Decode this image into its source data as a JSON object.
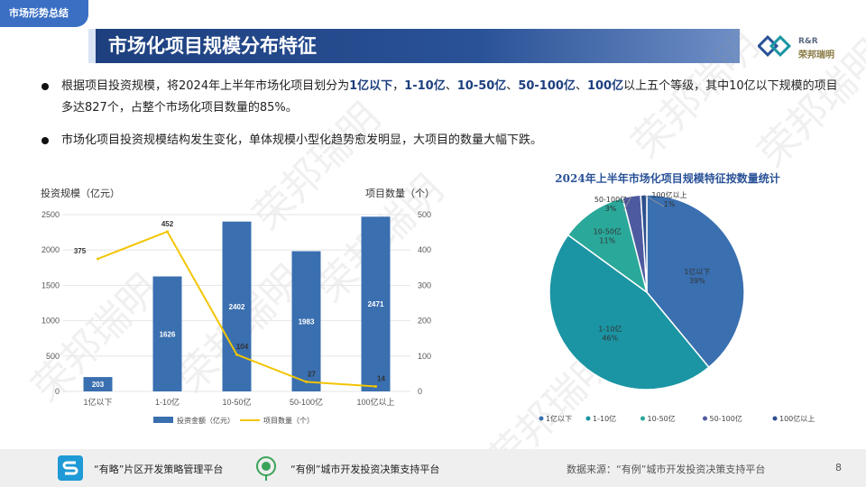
{
  "section_tag": "市场形势总结",
  "title": "市场化项目规模分布特征",
  "logo": {
    "en": "R&R",
    "cn": "荣邦瑞明"
  },
  "bullets": [
    {
      "parts": [
        {
          "t": "根据项目投资规模，将2024年上半年市场化项目划分为",
          "h": false
        },
        {
          "t": "1亿以下",
          "h": true
        },
        {
          "t": "，",
          "h": false
        },
        {
          "t": "1-10亿",
          "h": true
        },
        {
          "t": "、",
          "h": false
        },
        {
          "t": "10-50亿",
          "h": true
        },
        {
          "t": "、",
          "h": false
        },
        {
          "t": "50-100亿",
          "h": true
        },
        {
          "t": "、",
          "h": false
        },
        {
          "t": "100亿",
          "h": true
        },
        {
          "t": "以上五个等级，其中10亿以下规模的项目多达827个，占整个市场化项目数量的85%。",
          "h": false
        }
      ]
    },
    {
      "parts": [
        {
          "t": "市场化项目投资规模结构发生变化，单体规模小型化趋势愈发明显，大项目的数量大幅下跌。",
          "h": false
        }
      ]
    }
  ],
  "watermark": "荣邦瑞明",
  "chart_data": [
    {
      "type": "bar",
      "categories": [
        "1亿以下",
        "1-10亿",
        "10-50亿",
        "50-100亿",
        "100亿以上"
      ],
      "series": [
        {
          "name": "投资金额（亿元）",
          "kind": "bar",
          "axis": "left",
          "color": "#3a6fb0",
          "values": [
            203,
            1626,
            2402,
            1983,
            2471
          ]
        },
        {
          "name": "项目数量（个）",
          "kind": "line",
          "axis": "right",
          "color": "#f2c500",
          "values": [
            375,
            452,
            104,
            27,
            14
          ]
        }
      ],
      "ylabel": "投资规模（亿元）",
      "y2label": "项目数量（个）",
      "ylim": [
        0,
        2500
      ],
      "y2lim": [
        0,
        500
      ],
      "yticks": [
        "0",
        "500",
        "1000",
        "1500",
        "2000",
        "2500"
      ],
      "y2ticks": [
        "0",
        "100",
        "200",
        "300",
        "400",
        "500"
      ],
      "legend": "bottom"
    },
    {
      "type": "pie",
      "title": "2024年上半年市场化项目规模特征按数量统计",
      "categories": [
        "1亿以下",
        "1-10亿",
        "10-50亿",
        "50-100亿",
        "100亿以上"
      ],
      "values": [
        39,
        46,
        11,
        3,
        1
      ],
      "percent_labels": [
        "39%",
        "46%",
        "11%",
        "3%",
        "1%"
      ],
      "colors": [
        "#3a6fb0",
        "#1b95a3",
        "#2aa89a",
        "#4e5aa0",
        "#2d4f8f"
      ],
      "legend": "bottom"
    }
  ],
  "footer": {
    "platform1": "“有略”片区开发策略管理平台",
    "platform2": "“有例”城市开发投资决策支持平台",
    "source": "数据来源：“有例”城市开发投资决策支持平台",
    "page": "8"
  }
}
